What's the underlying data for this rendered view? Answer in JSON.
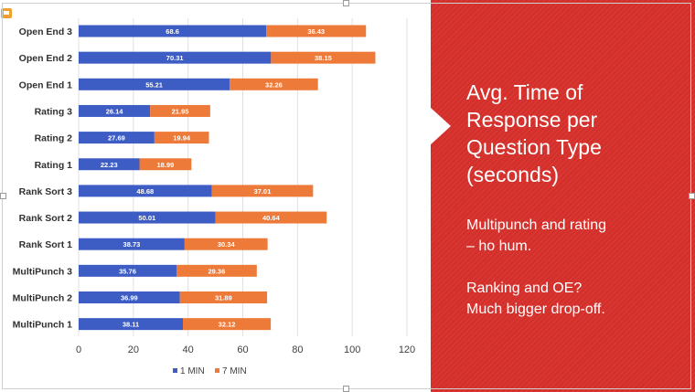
{
  "panel": {
    "title_lines": [
      "Avg. Time of",
      "Response per",
      "Question Type",
      "(seconds)"
    ],
    "note1_lines": [
      "Multipunch and rating",
      "– ho hum."
    ],
    "note2_lines": [
      "Ranking and OE?",
      "Much bigger drop-off."
    ]
  },
  "colors": {
    "series_1min": "#3d5cc4",
    "series_7min": "#ee7a3a",
    "panel": "#d42f2a"
  },
  "chart_data": {
    "type": "bar",
    "orientation": "horizontal",
    "stacked": true,
    "categories": [
      "Open End 3",
      "Open End 2",
      "Open End 1",
      "Rating 3",
      "Rating 2",
      "Rating 1",
      "Rank Sort 3",
      "Rank Sort 2",
      "Rank Sort 1",
      "MultiPunch 3",
      "MultiPunch 2",
      "MultiPunch 1"
    ],
    "series": [
      {
        "name": "1 MIN",
        "values": [
          68.6,
          70.31,
          55.21,
          26.14,
          27.69,
          22.23,
          48.68,
          50.01,
          38.73,
          35.76,
          36.99,
          38.11
        ],
        "labels": [
          "68.6",
          "70.31",
          "55.21",
          "26.14",
          "27.69",
          "22.23",
          "48.68",
          "50.01",
          "38.73",
          "35.76",
          "36.99",
          "38.11"
        ]
      },
      {
        "name": "7 MIN",
        "values": [
          36.43,
          38.15,
          32.26,
          21.95,
          19.94,
          18.99,
          37.01,
          40.64,
          30.34,
          29.36,
          31.89,
          32.12
        ],
        "labels": [
          "36.43",
          "38.15",
          "32.26",
          "21.95",
          "19.94",
          "18.99",
          "37.01",
          "40.64",
          "30.34",
          "29.36",
          "31.89",
          "32.12"
        ]
      }
    ],
    "xlim": [
      0,
      120
    ],
    "xticks": [
      "0",
      "20",
      "40",
      "60",
      "80",
      "100",
      "120"
    ],
    "grid": true,
    "legend_position": "bottom"
  }
}
